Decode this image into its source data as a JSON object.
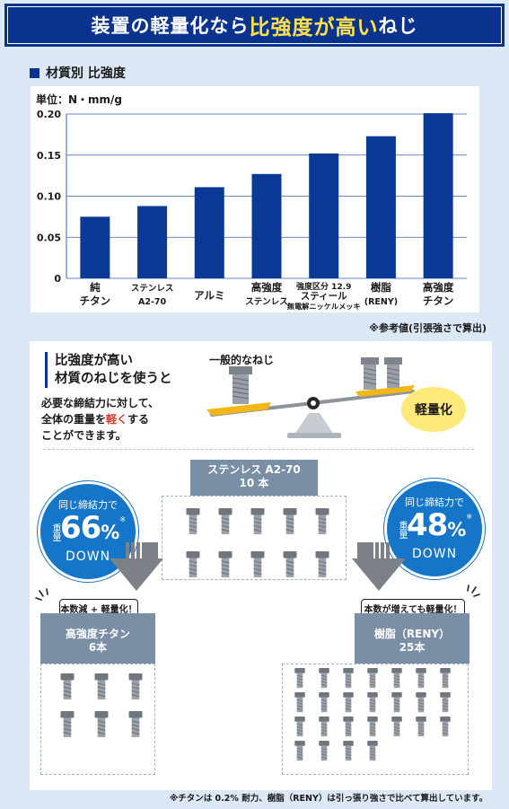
{
  "banner": {
    "prefix": "装置の軽量化なら",
    "highlight": "比強度が高い",
    "suffix": "ねじ"
  },
  "section_title": "材質別 比強度",
  "chart_data": {
    "type": "bar",
    "ylabel": "単位：N・mm/g",
    "ylim": [
      0,
      0.2
    ],
    "yticks": [
      "0",
      "0.05",
      "0.10",
      "0.15",
      "0.20"
    ],
    "grid": true,
    "bar_color": "#0b3a96",
    "categories": [
      [
        "純",
        "チタン"
      ],
      [
        "ステンレス",
        "A2-70"
      ],
      [
        "アルミ"
      ],
      [
        "高強度",
        "ステンレス"
      ],
      [
        "強度区分 12.9",
        "スティール",
        "無電解ニッケルメッキ"
      ],
      [
        "樹脂",
        "(RENY)"
      ],
      [
        "高強度",
        "チタン"
      ]
    ],
    "values": [
      0.075,
      0.088,
      0.111,
      0.127,
      0.152,
      0.173,
      0.201
    ]
  },
  "ref_note": "※参考値(引張強さで算出)",
  "headline": {
    "line1": "比強度が高い",
    "line2": "材質のねじを使うと"
  },
  "body": {
    "line1": "必要な締結力に対して、",
    "line2_a": "全体の重量を",
    "line2_red": "軽く",
    "line2_b": "する",
    "line3": "ことができます。"
  },
  "scale": {
    "label": "一般的なねじ",
    "light_label": "軽量化"
  },
  "groups": {
    "top": {
      "name": "ステンレス A2-70",
      "count": "10 本"
    },
    "left": {
      "name": "高強度チタン",
      "count": "6本",
      "callout": "本数減 + 軽量化！"
    },
    "right": {
      "name": "樹脂（RENY）",
      "count": "25本",
      "callout": "本数が増えても軽量化！"
    }
  },
  "reduction_left": {
    "top": "同じ締結力で",
    "prefix": "重量",
    "value": "66",
    "unit": "%",
    "mark": "※",
    "down": "DOWN"
  },
  "reduction_right": {
    "top": "同じ締結力で",
    "prefix": "重量",
    "value": "48",
    "unit": "%",
    "mark": "※",
    "down": "DOWN"
  },
  "footnote": "※チタンは 0.2% 耐力、樹脂（RENY）は引っ張り強さで比べて算出しています。",
  "colors": {
    "navy": "#0a3390",
    "accent_yellow": "#ffe14a",
    "circle_blue": "#1475c9",
    "red": "#e8342a",
    "gray_tag": "#7a8ea6"
  },
  "icons": {
    "bolt": "hex-bolt-icon",
    "arrow": "down-arrow-icon",
    "balance": "balance-scale-icon"
  }
}
